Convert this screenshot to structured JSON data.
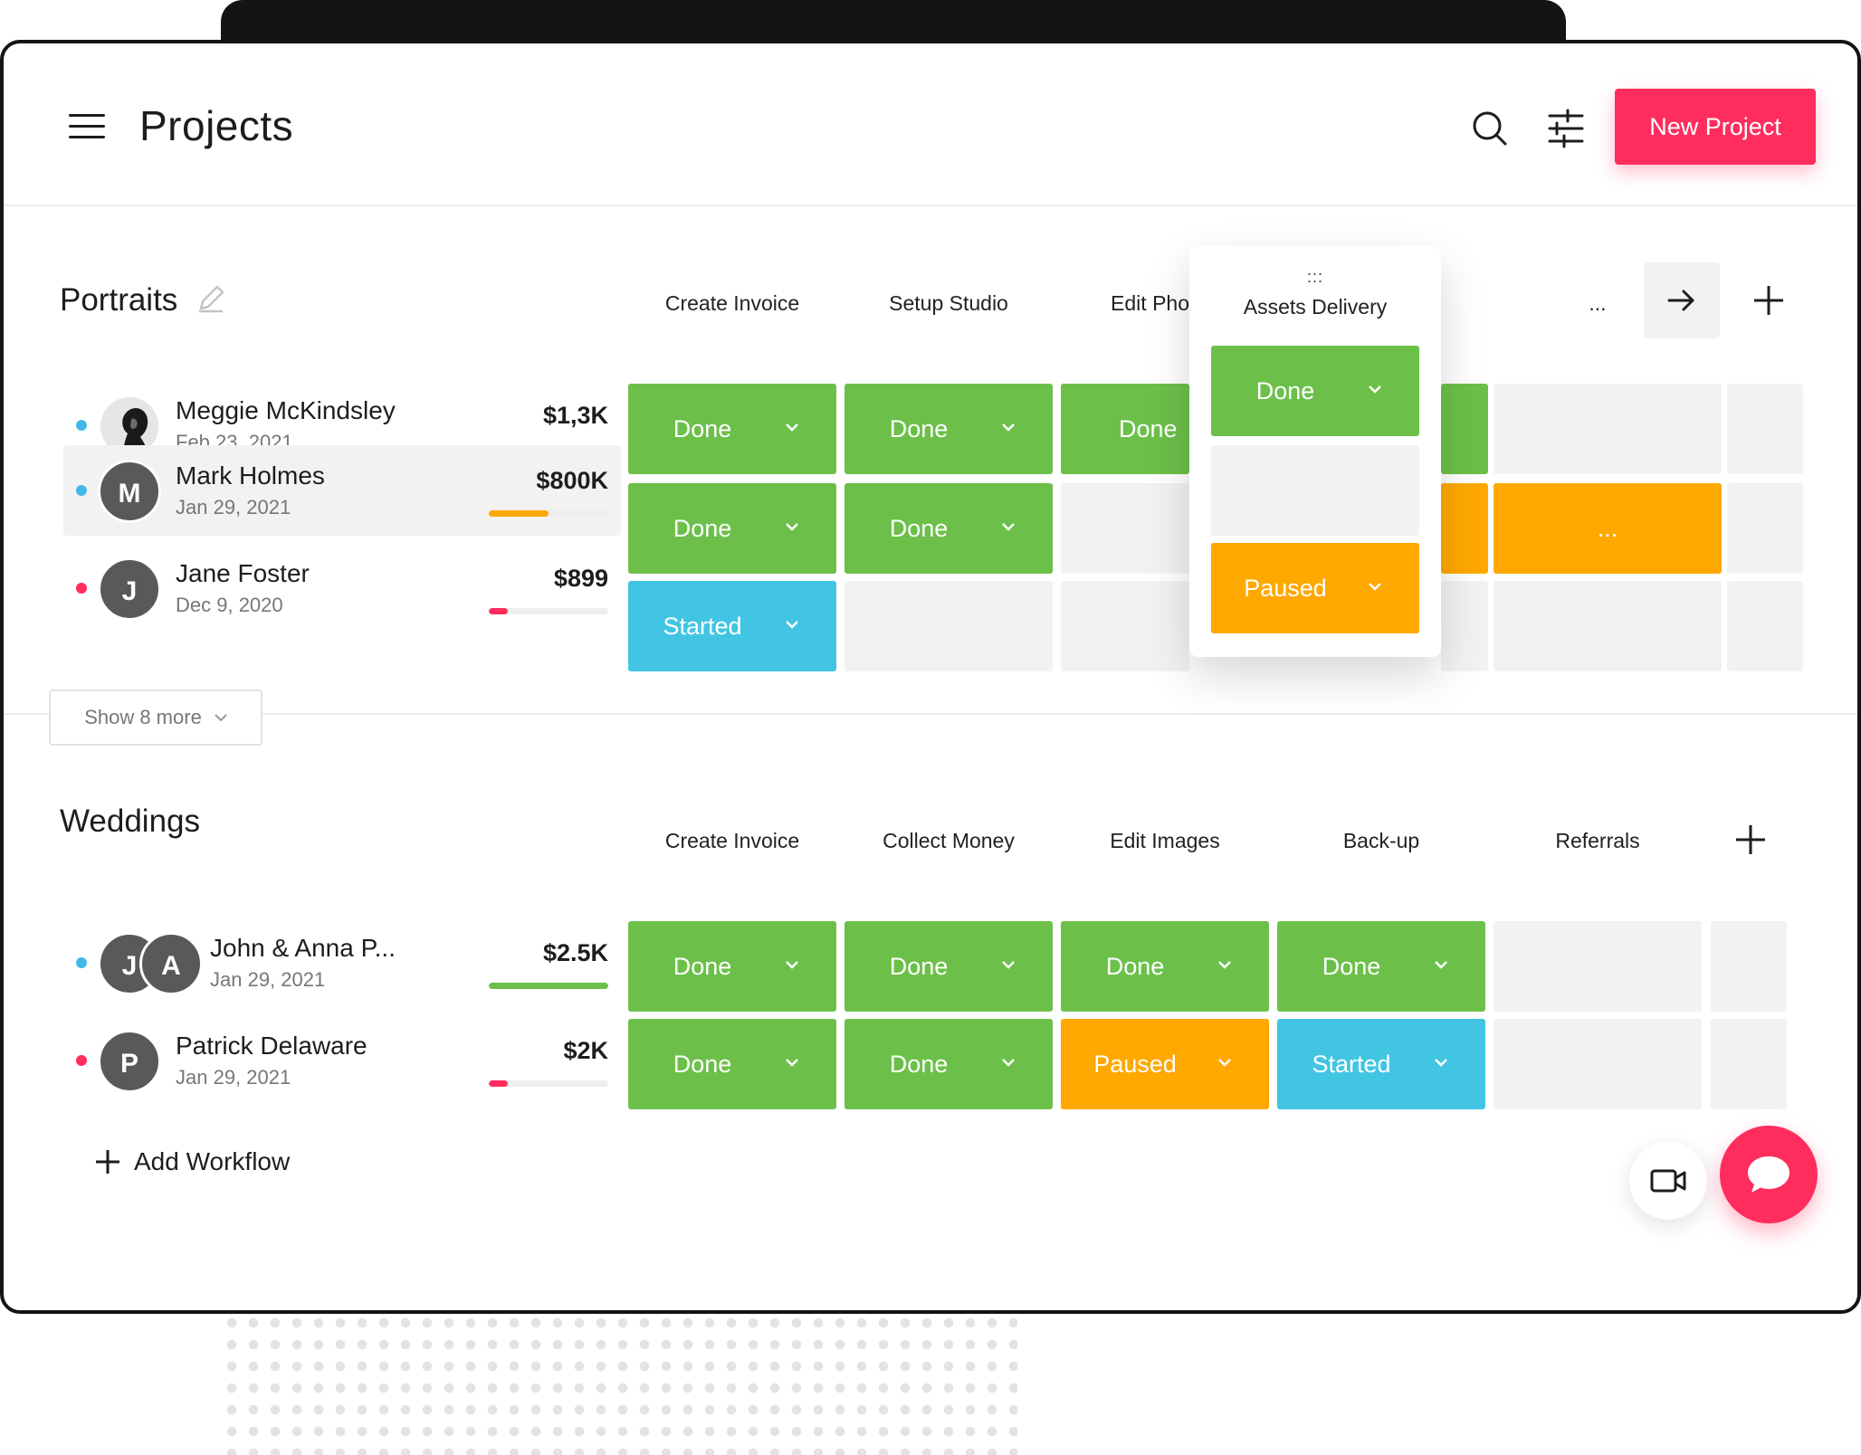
{
  "header": {
    "title": "Projects",
    "new_project_label": "New Project"
  },
  "portraits": {
    "title": "Portraits",
    "columns": [
      "Create Invoice",
      "Setup Studio",
      "Edit Pho",
      "...",
      ""
    ],
    "rows": [
      {
        "name": "Meggie McKindsley",
        "date": "Feb 23, 2021",
        "amount": "$1,3K",
        "progress": 1.0,
        "dot": "#42b8e8"
      },
      {
        "name": "Mark Holmes",
        "initial": "M",
        "date": "Jan 29, 2021",
        "amount": "$800K",
        "progress": 0.5,
        "dot": "#42b8e8"
      },
      {
        "name": "Jane Foster",
        "initial": "J",
        "date": "Dec 9, 2020",
        "amount": "$899",
        "progress": 0.16,
        "dot": "#ff2d5d"
      }
    ],
    "cells": {
      "r0": [
        "Done",
        "Done",
        "Done"
      ],
      "r1": [
        "Done",
        "Done",
        "..."
      ],
      "r2": [
        "Started"
      ]
    },
    "show_more": "Show 8 more"
  },
  "popup": {
    "handle": ":::",
    "title": "Assets Delivery",
    "r0": "Done",
    "r2": "Paused"
  },
  "weddings": {
    "title": "Weddings",
    "columns": [
      "Create Invoice",
      "Collect Money",
      "Edit Images",
      "Back-up",
      "Referrals"
    ],
    "rows": [
      {
        "name": "John & Anna P...",
        "initials": [
          "J",
          "A"
        ],
        "date": "Jan 29, 2021",
        "amount": "$2.5K",
        "progress": 1.0,
        "dot": "#42b8e8"
      },
      {
        "name": "Patrick Delaware",
        "initial": "P",
        "date": "Jan 29, 2021",
        "amount": "$2K",
        "progress": 0.16,
        "dot": "#ff2d5d"
      }
    ],
    "cells": {
      "r0": [
        "Done",
        "Done",
        "Done",
        "Done"
      ],
      "r1": [
        "Done",
        "Done",
        "Paused",
        "Started"
      ]
    }
  },
  "add_workflow": "Add Workflow",
  "colors": {
    "accent": "#ff2d5d",
    "done": "#6cc04a",
    "paused": "#ffa800",
    "started": "#42c5e3",
    "empty": "#f2f2f2"
  },
  "icons": [
    "hamburger-icon",
    "search-icon",
    "sliders-icon",
    "edit-pencil-icon",
    "arrow-right-icon",
    "plus-icon",
    "chevron-down-icon",
    "video-camera-icon",
    "chat-bubble-icon"
  ]
}
